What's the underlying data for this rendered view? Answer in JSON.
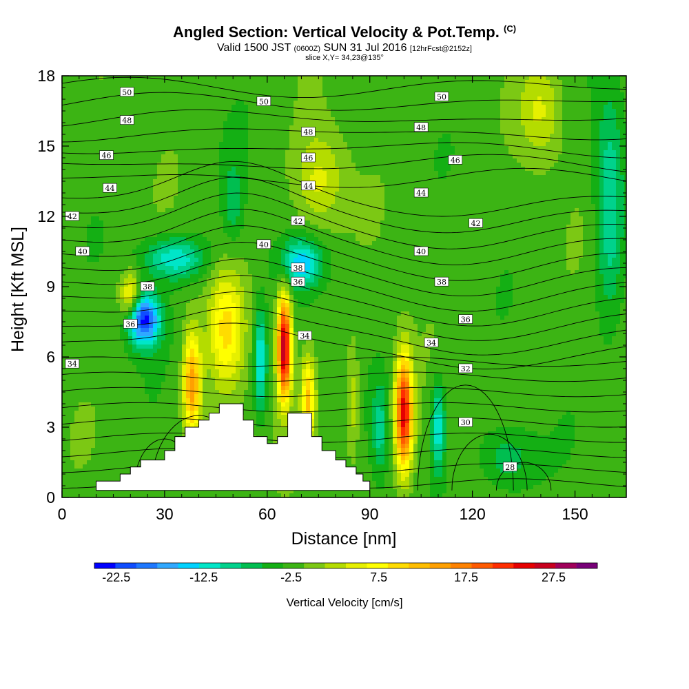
{
  "header": {
    "title": "Angled Section: Vertical Velocity & Pot.Temp.",
    "title_mark": "(C)",
    "valid_prefix": "Valid 1500 JST",
    "valid_z": "(0600Z)",
    "valid_date": "SUN 31 Jul 2016",
    "fcst": "[12hrFcst@2152z]",
    "slice": "slice X,Y= 34,23@135°"
  },
  "chart_data": {
    "type": "contour",
    "xlabel": "Distance [nm]",
    "ylabel": "Height [Kft MSL]",
    "xlim": [
      0,
      165
    ],
    "ylim": [
      0,
      18
    ],
    "x_ticks": [
      0,
      30,
      60,
      90,
      120,
      150
    ],
    "y_ticks": [
      0,
      3,
      6,
      9,
      12,
      15,
      18
    ],
    "colorbar": {
      "title": "Vertical Velocity [cm/s]",
      "labels": [
        "-22.5",
        "-12.5",
        "-2.5",
        "7.5",
        "17.5",
        "27.5"
      ],
      "label_values": [
        -22.5,
        -12.5,
        -2.5,
        7.5,
        17.5,
        27.5
      ],
      "min": -25,
      "max": 32.5,
      "step": 2.5,
      "colors": [
        "#0000ff",
        "#0f4dff",
        "#1e78ff",
        "#30a8ff",
        "#00d2ff",
        "#00e6c8",
        "#00d28c",
        "#00be50",
        "#14af14",
        "#3cb414",
        "#7cc814",
        "#b4dc00",
        "#e6f000",
        "#ffff00",
        "#ffdc00",
        "#ffbe00",
        "#ffa000",
        "#ff8200",
        "#ff5a00",
        "#ff2d00",
        "#e60000",
        "#c8001e",
        "#a0005a",
        "#780078"
      ]
    },
    "terrain": [
      [
        10,
        0.3
      ],
      [
        10,
        0.7
      ],
      [
        17,
        0.7
      ],
      [
        17,
        1.0
      ],
      [
        20,
        1.0
      ],
      [
        20,
        1.3
      ],
      [
        23,
        1.3
      ],
      [
        23,
        1.6
      ],
      [
        30,
        1.6
      ],
      [
        30,
        2.0
      ],
      [
        33,
        2.0
      ],
      [
        33,
        2.6
      ],
      [
        36,
        2.6
      ],
      [
        36,
        3.0
      ],
      [
        40,
        3.0
      ],
      [
        40,
        3.3
      ],
      [
        43,
        3.3
      ],
      [
        43,
        3.6
      ],
      [
        46,
        3.6
      ],
      [
        46,
        4.0
      ],
      [
        53,
        4.0
      ],
      [
        53,
        3.3
      ],
      [
        56,
        3.3
      ],
      [
        56,
        2.6
      ],
      [
        60,
        2.6
      ],
      [
        60,
        2.3
      ],
      [
        63,
        2.3
      ],
      [
        63,
        2.6
      ],
      [
        66,
        2.6
      ],
      [
        66,
        3.6
      ],
      [
        73,
        3.6
      ],
      [
        73,
        2.6
      ],
      [
        76,
        2.6
      ],
      [
        76,
        2.0
      ],
      [
        80,
        2.0
      ],
      [
        80,
        1.6
      ],
      [
        83,
        1.6
      ],
      [
        83,
        1.3
      ],
      [
        86,
        1.3
      ],
      [
        86,
        1.0
      ],
      [
        88,
        1.0
      ],
      [
        88,
        0.7
      ],
      [
        90,
        0.7
      ],
      [
        90,
        0.3
      ]
    ],
    "velocity_features": [
      {
        "x": 24,
        "y": 7.6,
        "value": -22,
        "sx": 4.5,
        "sy": 1.1
      },
      {
        "x": 33,
        "y": 10.2,
        "value": -11,
        "sx": 9,
        "sy": 0.9
      },
      {
        "x": 20,
        "y": 8.6,
        "value": 11,
        "sx": 3,
        "sy": 1.0
      },
      {
        "x": 65,
        "y": 6.4,
        "value": 32,
        "sx": 2.0,
        "sy": 2.2
      },
      {
        "x": 72,
        "y": 4.2,
        "value": 14,
        "sx": 2.0,
        "sy": 1.8
      },
      {
        "x": 58,
        "y": 5.8,
        "value": -12,
        "sx": 1.8,
        "sy": 2.2
      },
      {
        "x": 38,
        "y": 4.8,
        "value": 18,
        "sx": 2.5,
        "sy": 2.2
      },
      {
        "x": 48,
        "y": 7.2,
        "value": 11,
        "sx": 5,
        "sy": 2.5
      },
      {
        "x": 100,
        "y": 3.6,
        "value": 28,
        "sx": 2.5,
        "sy": 2.4
      },
      {
        "x": 110,
        "y": 3.0,
        "value": -11,
        "sx": 2.0,
        "sy": 2.0
      },
      {
        "x": 93,
        "y": 3.0,
        "value": -7,
        "sx": 2.2,
        "sy": 2.0
      },
      {
        "x": 70,
        "y": 10.0,
        "value": -12,
        "sx": 6,
        "sy": 1.0
      },
      {
        "x": 85,
        "y": 4.0,
        "value": 6,
        "sx": 2.0,
        "sy": 2.5
      },
      {
        "x": 160,
        "y": 12.5,
        "value": -9,
        "sx": 4,
        "sy": 4.5
      },
      {
        "x": 130,
        "y": 1.6,
        "value": -6,
        "sx": 8,
        "sy": 1.4
      },
      {
        "x": 75,
        "y": 13.5,
        "value": 7,
        "sx": 7,
        "sy": 2.0
      },
      {
        "x": 140,
        "y": 16.5,
        "value": 6,
        "sx": 6,
        "sy": 2.0
      },
      {
        "x": 48,
        "y": 2.0,
        "value": 9,
        "sx": 7,
        "sy": 1.0
      },
      {
        "x": 50,
        "y": 12.6,
        "value": -5,
        "sx": 3,
        "sy": 2.0
      }
    ],
    "isentrope_labels": [
      {
        "text": "50",
        "x": 19,
        "y": 17.3
      },
      {
        "text": "50",
        "x": 59,
        "y": 16.9
      },
      {
        "text": "50",
        "x": 111,
        "y": 17.1
      },
      {
        "text": "48",
        "x": 19,
        "y": 16.1
      },
      {
        "text": "48",
        "x": 72,
        "y": 15.6
      },
      {
        "text": "48",
        "x": 105,
        "y": 15.8
      },
      {
        "text": "46",
        "x": 13,
        "y": 14.6
      },
      {
        "text": "46",
        "x": 72,
        "y": 14.5
      },
      {
        "text": "46",
        "x": 115,
        "y": 14.4
      },
      {
        "text": "44",
        "x": 14,
        "y": 13.2
      },
      {
        "text": "44",
        "x": 72,
        "y": 13.3
      },
      {
        "text": "44",
        "x": 105,
        "y": 13.0
      },
      {
        "text": "42",
        "x": 3,
        "y": 12.0
      },
      {
        "text": "42",
        "x": 69,
        "y": 11.8
      },
      {
        "text": "42",
        "x": 121,
        "y": 11.7
      },
      {
        "text": "40",
        "x": 6,
        "y": 10.5
      },
      {
        "text": "40",
        "x": 59,
        "y": 10.8
      },
      {
        "text": "40",
        "x": 105,
        "y": 10.5
      },
      {
        "text": "38",
        "x": 25,
        "y": 9.0
      },
      {
        "text": "38",
        "x": 69,
        "y": 9.8
      },
      {
        "text": "38",
        "x": 111,
        "y": 9.2
      },
      {
        "text": "36",
        "x": 20,
        "y": 7.4
      },
      {
        "text": "36",
        "x": 69,
        "y": 9.2
      },
      {
        "text": "36",
        "x": 118,
        "y": 7.6
      },
      {
        "text": "34",
        "x": 3,
        "y": 5.7
      },
      {
        "text": "34",
        "x": 71,
        "y": 6.9
      },
      {
        "text": "34",
        "x": 108,
        "y": 6.6
      },
      {
        "text": "32",
        "x": 118,
        "y": 5.5
      },
      {
        "text": "30",
        "x": 118,
        "y": 3.2
      },
      {
        "text": "28",
        "x": 131,
        "y": 1.3
      }
    ]
  }
}
